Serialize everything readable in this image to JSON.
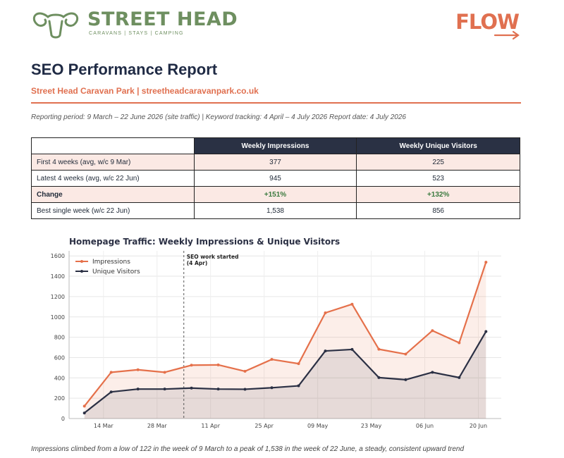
{
  "header": {
    "brand_name": "STREET HEAD",
    "brand_tagline": "CARAVANS | STAYS | CAMPING",
    "partner_logo": "FLOW",
    "brand_color": "#6e8f60",
    "accent_color": "#e07050"
  },
  "report": {
    "title": "SEO Performance Report",
    "subtitle": "Street Head Caravan Park  |  streetheadcaravanpark.co.uk",
    "meta": "Reporting period: 9 March – 22 June 2026 (site traffic)  |  Keyword tracking: 4 April – 4 July 2026     Report date: 4 July 2026"
  },
  "kpi_table": {
    "columns": [
      "Weekly Impressions",
      "Weekly Unique Visitors"
    ],
    "rows": [
      {
        "label": "First 4 weeks (avg, w/c 9 Mar)",
        "impressions": "377",
        "visitors": "225"
      },
      {
        "label": "Latest 4 weeks (avg, w/c 22 Jun)",
        "impressions": "945",
        "visitors": "523"
      },
      {
        "label": "Change",
        "impressions": "+151%",
        "visitors": "+132%"
      },
      {
        "label": "Best single week (w/c 22 Jun)",
        "impressions": "1,538",
        "visitors": "856"
      }
    ]
  },
  "chart_data": {
    "type": "line",
    "title": "Homepage Traffic: Weekly Impressions & Unique Visitors",
    "x": [
      "2026-03-09",
      "2026-03-16",
      "2026-03-23",
      "2026-03-30",
      "2026-04-06",
      "2026-04-13",
      "2026-04-20",
      "2026-04-27",
      "2026-05-04",
      "2026-05-11",
      "2026-05-18",
      "2026-05-25",
      "2026-06-01",
      "2026-06-08",
      "2026-06-15",
      "2026-06-22"
    ],
    "x_tick_labels": [
      "14 Mar",
      "28 Mar",
      "11 Apr",
      "25 Apr",
      "09 May",
      "23 May",
      "06 Jun",
      "20 Jun"
    ],
    "x_tick_dates": [
      "2026-03-14",
      "2026-03-28",
      "2026-04-11",
      "2026-04-25",
      "2026-05-09",
      "2026-05-23",
      "2026-06-06",
      "2026-06-20"
    ],
    "xlim": [
      "2026-03-05",
      "2026-06-26"
    ],
    "ylim": [
      0,
      1650
    ],
    "y_ticks": [
      0,
      200,
      400,
      600,
      800,
      1000,
      1200,
      1400,
      1600
    ],
    "series": [
      {
        "name": "Impressions",
        "color": "#e5704a",
        "fill": true,
        "values": [
          122,
          455,
          480,
          455,
          525,
          528,
          465,
          582,
          540,
          1040,
          1125,
          682,
          634,
          865,
          745,
          1538
        ]
      },
      {
        "name": "Unique Visitors",
        "color": "#2b3044",
        "fill": true,
        "values": [
          55,
          262,
          290,
          290,
          300,
          290,
          288,
          303,
          322,
          665,
          680,
          403,
          382,
          455,
          403,
          856
        ]
      }
    ],
    "annotation": {
      "date": "2026-04-04",
      "label_line1": "SEO work started",
      "label_line2": "(4 Apr)"
    },
    "legend_position": "top-left",
    "grid": true
  },
  "caption": "Impressions climbed from a low of 122 in the week of 9 March to a peak of 1,538 in the week of 22 June, a steady, consistent upward trend"
}
